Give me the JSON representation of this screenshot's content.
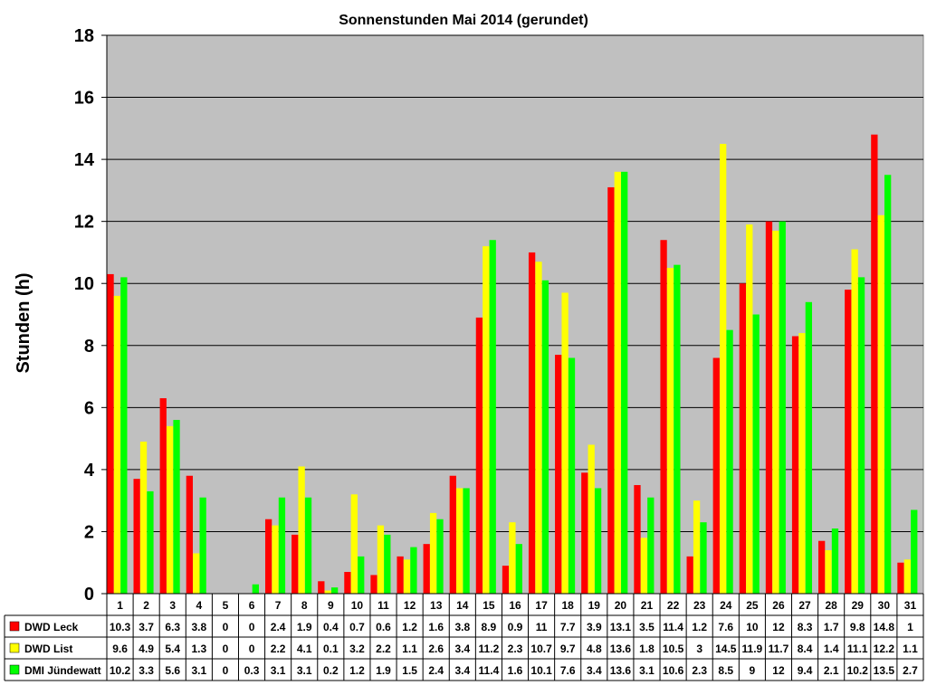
{
  "chart_data": {
    "type": "bar",
    "title": "Sonnenstunden Mai 2014 (gerundet)",
    "ylabel": "Stunden (h)",
    "xlabel": "",
    "ylim": [
      0,
      18
    ],
    "yticks": [
      0,
      2,
      4,
      6,
      8,
      10,
      12,
      14,
      16,
      18
    ],
    "grid": "horizontal",
    "legend_placement": "bottom-left data table",
    "categories": [
      "1",
      "2",
      "3",
      "4",
      "5",
      "6",
      "7",
      "8",
      "9",
      "10",
      "11",
      "12",
      "13",
      "14",
      "15",
      "16",
      "17",
      "18",
      "19",
      "20",
      "21",
      "22",
      "23",
      "24",
      "25",
      "26",
      "27",
      "28",
      "29",
      "30",
      "31"
    ],
    "series": [
      {
        "name": "DWD Leck",
        "color": "#ff0000",
        "values": [
          10.3,
          3.7,
          6.3,
          3.8,
          0,
          0,
          2.4,
          1.9,
          0.4,
          0.7,
          0.6,
          1.2,
          1.6,
          3.8,
          8.9,
          0.9,
          11,
          7.7,
          3.9,
          13.1,
          3.5,
          11.4,
          1.2,
          7.6,
          10,
          12,
          8.3,
          1.7,
          9.8,
          14.8,
          1
        ],
        "labels": [
          "10.3",
          "3.7",
          "6.3",
          "3.8",
          "0",
          "0",
          "2.4",
          "1.9",
          "0.4",
          "0.7",
          "0.6",
          "1.2",
          "1.6",
          "3.8",
          "8.9",
          "0.9",
          "11",
          "7.7",
          "3.9",
          "13.1",
          "3.5",
          "11.4",
          "1.2",
          "7.6",
          "10",
          "12",
          "8.3",
          "1.7",
          "9.8",
          "14.8",
          "1"
        ]
      },
      {
        "name": "DWD List",
        "color": "#ffff00",
        "values": [
          9.6,
          4.9,
          5.4,
          1.3,
          0,
          0,
          2.2,
          4.1,
          0.1,
          3.2,
          2.2,
          1.1,
          2.6,
          3.4,
          11.2,
          2.3,
          10.7,
          9.7,
          4.8,
          13.6,
          1.8,
          10.5,
          3,
          14.5,
          11.9,
          11.7,
          8.4,
          1.4,
          11.1,
          12.2,
          1.1
        ],
        "labels": [
          "9.6",
          "4.9",
          "5.4",
          "1.3",
          "0",
          "0",
          "2.2",
          "4.1",
          "0.1",
          "3.2",
          "2.2",
          "1.1",
          "2.6",
          "3.4",
          "11.2",
          "2.3",
          "10.7",
          "9.7",
          "4.8",
          "13.6",
          "1.8",
          "10.5",
          "3",
          "14.5",
          "11.9",
          "11.7",
          "8.4",
          "1.4",
          "11.1",
          "12.2",
          "1.1"
        ]
      },
      {
        "name": "DMI Jündewatt",
        "color": "#00ff00",
        "values": [
          10.2,
          3.3,
          5.6,
          3.1,
          0,
          0.3,
          3.1,
          3.1,
          0.2,
          1.2,
          1.9,
          1.5,
          2.4,
          3.4,
          11.4,
          1.6,
          10.1,
          7.6,
          3.4,
          13.6,
          3.1,
          10.6,
          2.3,
          8.5,
          9,
          12,
          9.4,
          2.1,
          10.2,
          13.5,
          2.7
        ],
        "labels": [
          "10.2",
          "3.3",
          "5.6",
          "3.1",
          "0",
          "0.3",
          "3.1",
          "3.1",
          "0.2",
          "1.2",
          "1.9",
          "1.5",
          "2.4",
          "3.4",
          "11.4",
          "1.6",
          "10.1",
          "7.6",
          "3.4",
          "13.6",
          "3.1",
          "10.6",
          "2.3",
          "8.5",
          "9",
          "12",
          "9.4",
          "2.1",
          "10.2",
          "13.5",
          "2.7"
        ]
      }
    ],
    "colors": {
      "plot_background": "#c0c0c0",
      "gridline": "#000000",
      "page_background": "#ffffff"
    }
  }
}
